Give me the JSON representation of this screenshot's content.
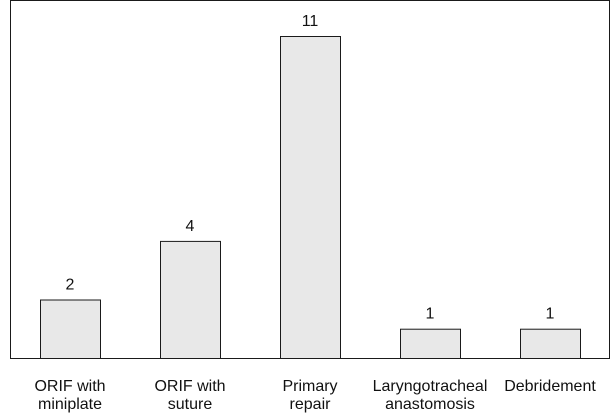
{
  "chart_data": {
    "type": "bar",
    "categories": [
      [
        "ORIF with",
        "miniplate"
      ],
      [
        "ORIF with",
        "suture"
      ],
      [
        "Primary",
        "repair"
      ],
      [
        "Laryngotracheal",
        "anastomosis"
      ],
      [
        "Debridement"
      ]
    ],
    "values": [
      2,
      4,
      11,
      1,
      1
    ],
    "title": "",
    "xlabel": "",
    "ylabel": "",
    "ylim": [
      0,
      12
    ],
    "grid": false,
    "legend": "none",
    "colors": {
      "bar_fill": "#e8e8e8",
      "bar_stroke": "#1a1a1a",
      "text": "#111111"
    }
  }
}
